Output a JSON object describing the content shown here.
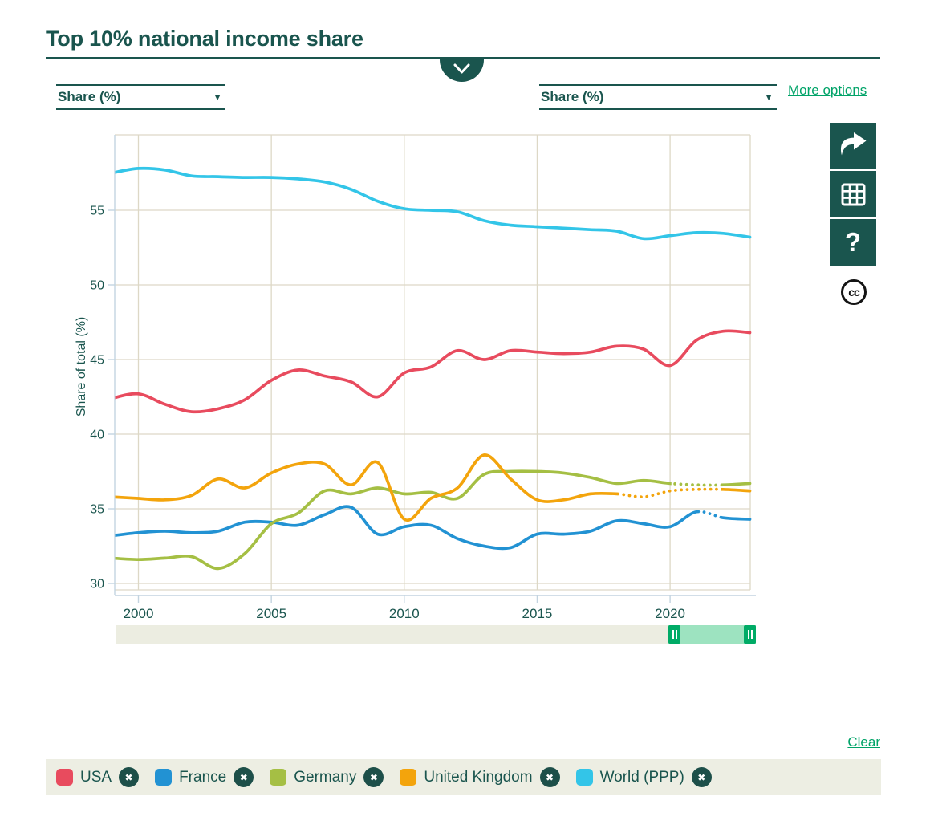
{
  "title": "Top 10% national income share",
  "controls": {
    "left_select_value": "Share (%)",
    "right_select_value": "Share (%)",
    "more_options": "More options",
    "clear": "Clear"
  },
  "icons": {
    "select_caret": "▼",
    "help_glyph": "?",
    "cc_glyph": "cc",
    "legend_remove_glyph": "✖"
  },
  "chart_data": {
    "type": "line",
    "title": "Top 10% national income share",
    "xlabel": "",
    "ylabel": "Share of total (%)",
    "xlim": [
      1999,
      2023.1
    ],
    "ylim": [
      29,
      60
    ],
    "grid": true,
    "legend_position": "bottom",
    "x": [
      1999,
      2000,
      2001,
      2002,
      2003,
      2004,
      2005,
      2006,
      2007,
      2008,
      2009,
      2010,
      2011,
      2012,
      2013,
      2014,
      2015,
      2016,
      2017,
      2018,
      2019,
      2020,
      2021,
      2022,
      2023
    ],
    "xticks": [
      2000,
      2005,
      2010,
      2015,
      2020
    ],
    "yticks": [
      30,
      35,
      40,
      45,
      50,
      55
    ],
    "series": [
      {
        "name": "USA",
        "color": "#e84b5e",
        "values": [
          42.4,
          42.7,
          42.0,
          41.5,
          41.7,
          42.3,
          43.6,
          44.3,
          43.9,
          43.5,
          42.5,
          44.1,
          44.5,
          45.6,
          45.0,
          45.6,
          45.5,
          45.4,
          45.5,
          45.9,
          45.7,
          44.6,
          46.3,
          46.9,
          46.8
        ]
      },
      {
        "name": "France",
        "color": "#2292d3",
        "dotted_range": [
          2021.1,
          2021.9
        ],
        "values": [
          33.2,
          33.4,
          33.5,
          33.4,
          33.5,
          34.1,
          34.1,
          33.9,
          34.6,
          35.1,
          33.3,
          33.8,
          33.9,
          33.0,
          32.5,
          32.4,
          33.3,
          33.3,
          33.5,
          34.2,
          34.0,
          33.8,
          34.8,
          34.4,
          34.3
        ]
      },
      {
        "name": "Germany",
        "color": "#a5bf44",
        "dotted_range": [
          2020.05,
          2021.9
        ],
        "values": [
          31.7,
          31.6,
          31.7,
          31.8,
          31.0,
          32.0,
          34.0,
          34.7,
          36.2,
          36.0,
          36.4,
          36.0,
          36.1,
          35.7,
          37.3,
          37.5,
          37.5,
          37.4,
          37.1,
          36.7,
          36.9,
          36.7,
          36.6,
          36.6,
          36.7
        ]
      },
      {
        "name": "United Kingdom",
        "color": "#f3a40c",
        "dotted_range": [
          2018.05,
          2021.9
        ],
        "values": [
          35.8,
          35.7,
          35.6,
          35.9,
          37.0,
          36.4,
          37.4,
          38.0,
          38.0,
          36.6,
          38.1,
          34.3,
          35.7,
          36.4,
          38.6,
          37.0,
          35.6,
          35.6,
          36.0,
          36.0,
          35.8,
          36.2,
          36.3,
          36.3,
          36.2
        ]
      },
      {
        "name": "World (PPP)",
        "color": "#33c5e8",
        "values": [
          57.5,
          57.8,
          57.7,
          57.3,
          57.25,
          57.2,
          57.2,
          57.1,
          56.9,
          56.4,
          55.6,
          55.1,
          55.0,
          54.9,
          54.3,
          54.0,
          53.9,
          53.8,
          53.7,
          53.6,
          53.1,
          53.3,
          53.5,
          53.45,
          53.2
        ]
      }
    ]
  },
  "legend": {
    "items": [
      {
        "label": "USA",
        "color": "#e84b5e"
      },
      {
        "label": "France",
        "color": "#2292d3"
      },
      {
        "label": "Germany",
        "color": "#a5bf44"
      },
      {
        "label": "United Kingdom",
        "color": "#f3a40c"
      },
      {
        "label": "World (PPP)",
        "color": "#33c5e8"
      }
    ]
  }
}
